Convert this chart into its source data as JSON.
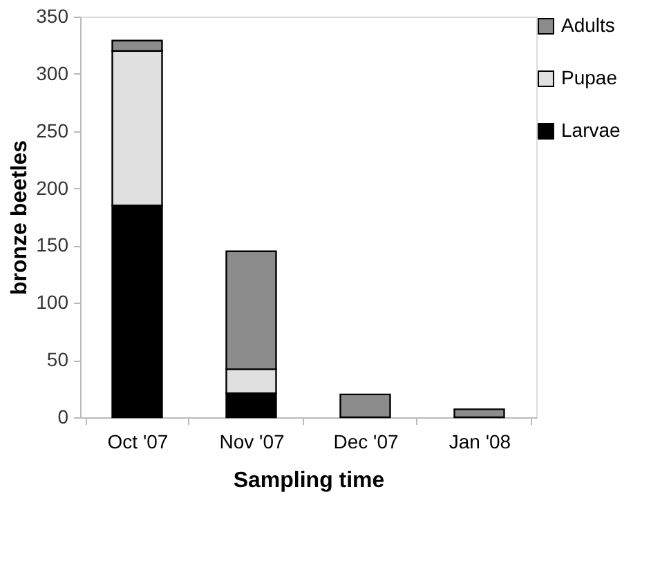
{
  "chart_data": {
    "type": "bar",
    "stacked": true,
    "xlabel": "Sampling time",
    "ylabel": "bronze beetles",
    "categories": [
      "Oct '07",
      "Nov '07",
      "Dec '07",
      "Jan '08"
    ],
    "series": [
      {
        "name": "Larvae",
        "color": "#000000",
        "values": [
          185,
          21,
          null,
          null
        ]
      },
      {
        "name": "Pupae",
        "color": "#e0e0e0",
        "values": [
          135,
          21,
          null,
          null
        ]
      },
      {
        "name": "Adults",
        "color": "#8c8c8c",
        "values": [
          9,
          103,
          20,
          7
        ]
      }
    ],
    "ylim": [
      0,
      350
    ],
    "yticks": [
      0,
      50,
      100,
      150,
      200,
      250,
      300,
      350
    ],
    "grid": false,
    "legend": "right"
  }
}
